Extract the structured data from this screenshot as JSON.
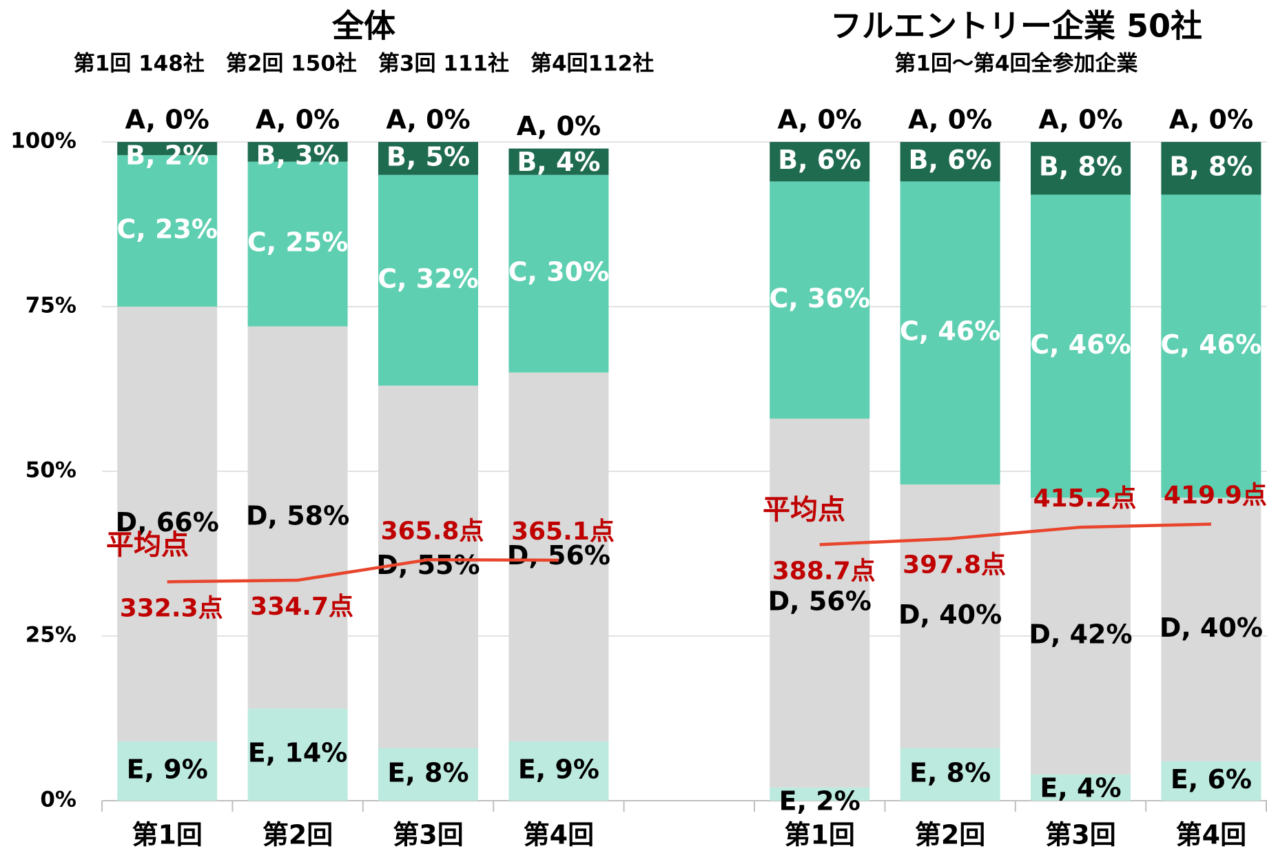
{
  "chart_data": {
    "type": "bar",
    "stacked": true,
    "groups": [
      {
        "title": "全体",
        "subtitle": "第1回 148社　第2回 150社　第3回 111社　第4回112社"
      },
      {
        "title": "フルエントリー企業 50社",
        "subtitle": "第1回～第4回全参加企業"
      }
    ],
    "categories": [
      "第1回",
      "第2回",
      "第3回",
      "第4回",
      null,
      "第1回",
      "第2回",
      "第3回",
      "第4回"
    ],
    "series": [
      {
        "name": "E",
        "color": "#bdeadf",
        "label_color": "#000000",
        "values": [
          9,
          14,
          8,
          9,
          null,
          2,
          8,
          4,
          6
        ],
        "value_labels": [
          "E, 9%",
          "E, 14%",
          "E, 8%",
          "E, 9%",
          null,
          "E, 2%",
          "E, 8%",
          "E, 4%",
          "E, 6%"
        ]
      },
      {
        "name": "D",
        "color": "#d9d9d9",
        "label_color": "#000000",
        "values": [
          66,
          58,
          55,
          56,
          null,
          56,
          40,
          42,
          40
        ],
        "value_labels": [
          "D, 66%",
          "D, 58%",
          "D, 55%",
          "D, 56%",
          null,
          "D, 56%",
          "D, 40%",
          "D, 42%",
          "D, 40%"
        ]
      },
      {
        "name": "C",
        "color": "#5ecfb1",
        "label_color": "#ffffff",
        "values": [
          23,
          25,
          32,
          30,
          null,
          36,
          46,
          46,
          46
        ],
        "value_labels": [
          "C, 23%",
          "C, 25%",
          "C, 32%",
          "C, 30%",
          null,
          "C, 36%",
          "C, 46%",
          "C, 46%",
          "C, 46%"
        ]
      },
      {
        "name": "B",
        "color": "#1f6b50",
        "label_color": "#ffffff",
        "values": [
          2,
          3,
          5,
          4,
          null,
          6,
          6,
          8,
          8
        ],
        "value_labels": [
          "B, 2%",
          "B, 3%",
          "B, 5%",
          "B, 4%",
          null,
          "B, 6%",
          "B, 6%",
          "B, 8%",
          "B, 8%"
        ]
      },
      {
        "name": "A",
        "color": "#0b3d2c",
        "label_color": "#000000",
        "values": [
          0,
          0,
          0,
          0,
          null,
          0,
          0,
          0,
          0
        ],
        "value_labels": [
          "A, 0%",
          "A, 0%",
          "A, 0%",
          "A, 0%",
          null,
          "A, 0%",
          "A, 0%",
          "A, 0%",
          "A, 0%"
        ]
      }
    ],
    "line": {
      "name": "平均点",
      "type": "line",
      "axis": "y2",
      "color": "#e8452c",
      "label_color": "#c00000",
      "values": [
        332.3,
        334.7,
        365.8,
        365.1,
        null,
        388.7,
        397.8,
        415.2,
        419.9
      ],
      "value_labels": [
        "332.3点",
        "334.7点",
        "365.8点",
        "365.1点",
        null,
        "388.7点",
        "397.8点",
        "415.2点",
        "419.9点"
      ]
    },
    "ylim": [
      0,
      100
    ],
    "yticks": [
      {
        "value": 0,
        "label": "0%"
      },
      {
        "value": 25,
        "label": "25%"
      },
      {
        "value": 50,
        "label": "50%"
      },
      {
        "value": 75,
        "label": "75%"
      },
      {
        "value": 100,
        "label": "100%"
      }
    ],
    "y2lim": [
      0,
      1000
    ],
    "grid": true
  }
}
